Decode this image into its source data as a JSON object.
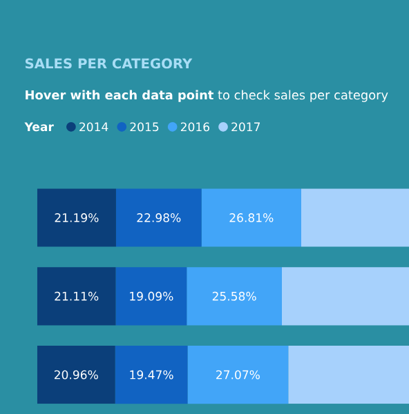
{
  "chart_data": {
    "type": "bar",
    "orientation": "horizontal",
    "stacked": true,
    "title": "SALES PER CATEGORY",
    "subtitle": "**Hover with each data point** to check sales per category",
    "legend_title": "Year",
    "legend": "top left",
    "categories": [
      null,
      null,
      null
    ],
    "xlim": [
      0,
      100
    ],
    "tick_labels": false,
    "series": [
      {
        "name": "2014",
        "color": "#0b3f7a",
        "values": [
          21.19,
          21.11,
          20.96
        ],
        "value_labels": [
          "21.19%",
          "21.11%",
          "20.96%"
        ]
      },
      {
        "name": "2015",
        "color": "#1163c2",
        "values": [
          22.98,
          19.09,
          19.47
        ],
        "value_labels": [
          "22.98%",
          "19.09%",
          "19.47%"
        ]
      },
      {
        "name": "2016",
        "color": "#42a5f8",
        "values": [
          26.81,
          25.58,
          27.07
        ],
        "value_labels": [
          "26.81%",
          "25.58%",
          "27.07%"
        ]
      },
      {
        "name": "2017",
        "color": "#a7d1fc",
        "values": [
          29.02,
          34.22,
          32.5
        ],
        "value_labels": [
          null,
          null,
          null
        ]
      }
    ]
  }
}
